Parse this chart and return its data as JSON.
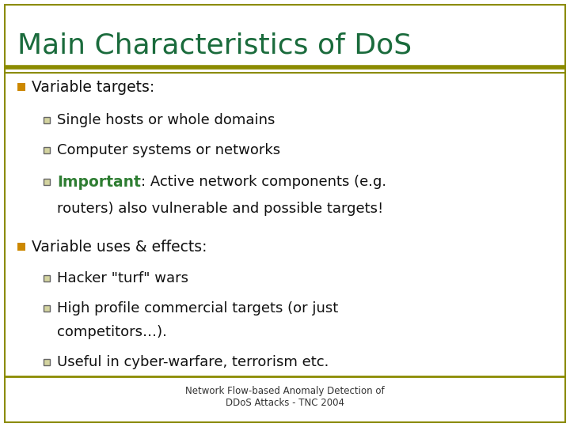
{
  "title": "Main Characteristics of DoS",
  "title_color": "#1a6b3c",
  "title_fontsize": 26,
  "background_color": "#ffffff",
  "border_color": "#8B8B00",
  "top_line_color_thick": "#8B8B00",
  "top_line_color_thin": "#8B8B00",
  "bullet_color": "#cc8800",
  "footer": "Network Flow-based Anomaly Detection of\nDDoS Attacks - TNC 2004",
  "footer_fontsize": 8.5,
  "important_color": "#2e7d32",
  "important_fontsize": 13.5,
  "body_fontsize": 13,
  "bullet_fontsize": 13.5,
  "bullet1_text": "Variable targets:",
  "bullet2_text": "Variable uses & effects:",
  "sub1": [
    "Single hosts or whole domains",
    "Computer systems or networks"
  ],
  "sub1_important_word": "Important",
  "sub1_important_rest": ": Active network components (e.g.",
  "sub1_important_line2": "routers) also vulnerable and possible targets!",
  "sub2": [
    "Hacker \"turf\" wars",
    "High profile commercial targets (or just",
    "competitors…).",
    "Useful in cyber-warfare, terrorism etc."
  ],
  "sub2_continuation_index": 2
}
